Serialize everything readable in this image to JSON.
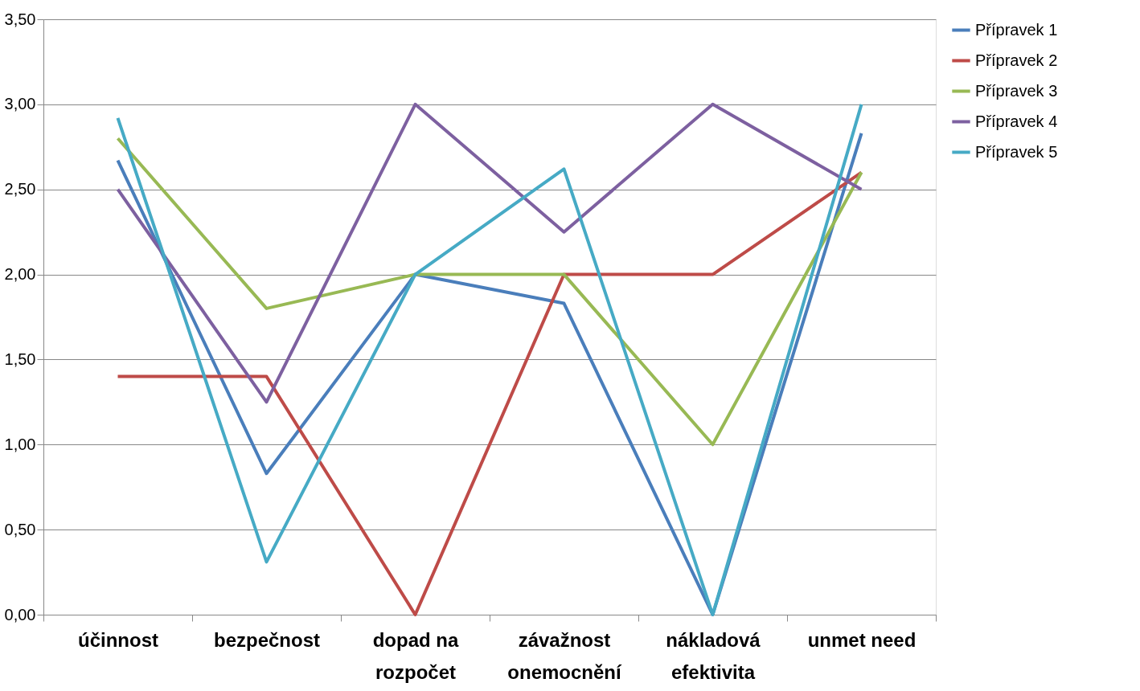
{
  "chart_data": {
    "type": "line",
    "categories": [
      "účinnost",
      "bezpečnost",
      "dopad na\nrozpočet",
      "závažnost\nonemocnění",
      "nákladová\nefektivita",
      "unmet need"
    ],
    "series": [
      {
        "name": "Přípravek 1",
        "color": "#4a7ebb",
        "values": [
          2.67,
          0.83,
          2.0,
          1.83,
          0.0,
          2.83
        ]
      },
      {
        "name": "Přípravek 2",
        "color": "#be4b48",
        "values": [
          1.4,
          1.4,
          0.0,
          2.0,
          2.0,
          2.6
        ]
      },
      {
        "name": "Přípravek 3",
        "color": "#98b954",
        "values": [
          2.8,
          1.8,
          2.0,
          2.0,
          1.0,
          2.6
        ]
      },
      {
        "name": "Přípravek 4",
        "color": "#7d60a0",
        "values": [
          2.5,
          1.25,
          3.0,
          2.25,
          3.0,
          2.5
        ]
      },
      {
        "name": "Přípravek 5",
        "color": "#46aac5",
        "values": [
          2.92,
          0.31,
          2.0,
          2.62,
          0.0,
          3.0
        ]
      }
    ],
    "ylim": [
      0,
      3.5
    ],
    "yticks": [
      {
        "value": 0,
        "label": "0,00"
      },
      {
        "value": 0.5,
        "label": "0,50"
      },
      {
        "value": 1,
        "label": "1,00"
      },
      {
        "value": 1.5,
        "label": "1,50"
      },
      {
        "value": 2,
        "label": "2,00"
      },
      {
        "value": 2.5,
        "label": "2,50"
      },
      {
        "value": 3,
        "label": "3,00"
      },
      {
        "value": 3.5,
        "label": "3,50"
      }
    ],
    "grid": "y",
    "legend": "right",
    "marker": "none",
    "line_style": "solid"
  }
}
